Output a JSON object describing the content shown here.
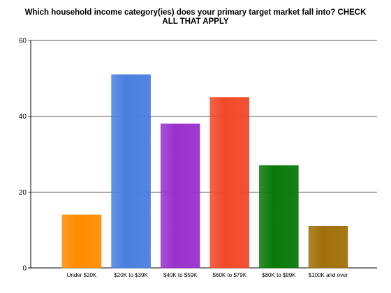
{
  "chart_data": {
    "type": "bar",
    "title_lines": [
      "Which household income category(ies) does your primary target market fall into? CHECK",
      "ALL THAT APPLY"
    ],
    "categories": [
      "Under $20K",
      "$20K to $39K",
      "$40K to $59K",
      "$60K to $79K",
      "$80K to $99K",
      "$100K and over"
    ],
    "values": [
      14,
      51,
      38,
      45,
      27,
      11
    ],
    "colors": [
      "#FF8C00",
      "#4A7FE0",
      "#9932CC",
      "#F04A2A",
      "#0A7A0A",
      "#A0700A"
    ],
    "ylim": [
      0,
      60
    ],
    "yticks": [
      0,
      20,
      40,
      60
    ],
    "grid": true,
    "legend": "none"
  }
}
